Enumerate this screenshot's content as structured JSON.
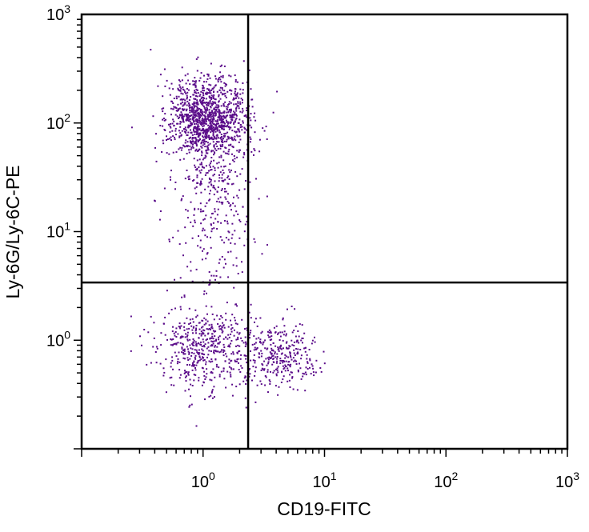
{
  "chart_data": {
    "type": "scatter",
    "title": "",
    "xlabel": "CD19-FITC",
    "ylabel": "Ly-6G/Ly-6C-PE",
    "xscale": "log",
    "yscale": "log",
    "xlim": [
      0.1,
      1000
    ],
    "ylim": [
      0.1,
      1000
    ],
    "xticks": [
      {
        "base": "10",
        "exp": "0",
        "value": 1
      },
      {
        "base": "10",
        "exp": "1",
        "value": 10
      },
      {
        "base": "10",
        "exp": "2",
        "value": 100
      },
      {
        "base": "10",
        "exp": "3",
        "value": 1000
      }
    ],
    "yticks": [
      {
        "base": "10",
        "exp": "0",
        "value": 1
      },
      {
        "base": "10",
        "exp": "1",
        "value": 10
      },
      {
        "base": "10",
        "exp": "2",
        "value": 100
      },
      {
        "base": "10",
        "exp": "3",
        "value": 1000
      }
    ],
    "gates": {
      "x": 2.35,
      "y": 3.4
    },
    "point_color": "#5b0d8a",
    "grid": false,
    "legend": "none",
    "populations": [
      {
        "name": "",
        "center": [
          1.1,
          110
        ],
        "spread": [
          0.16,
          0.2
        ],
        "count": 1200
      },
      {
        "name": "",
        "center": [
          1.25,
          20
        ],
        "spread": [
          0.18,
          0.4
        ],
        "count": 330
      },
      {
        "name": "",
        "center": [
          1.0,
          0.85
        ],
        "spread": [
          0.2,
          0.2
        ],
        "count": 500
      },
      {
        "name": "",
        "center": [
          4.2,
          0.7
        ],
        "spread": [
          0.17,
          0.15
        ],
        "count": 320
      }
    ]
  }
}
